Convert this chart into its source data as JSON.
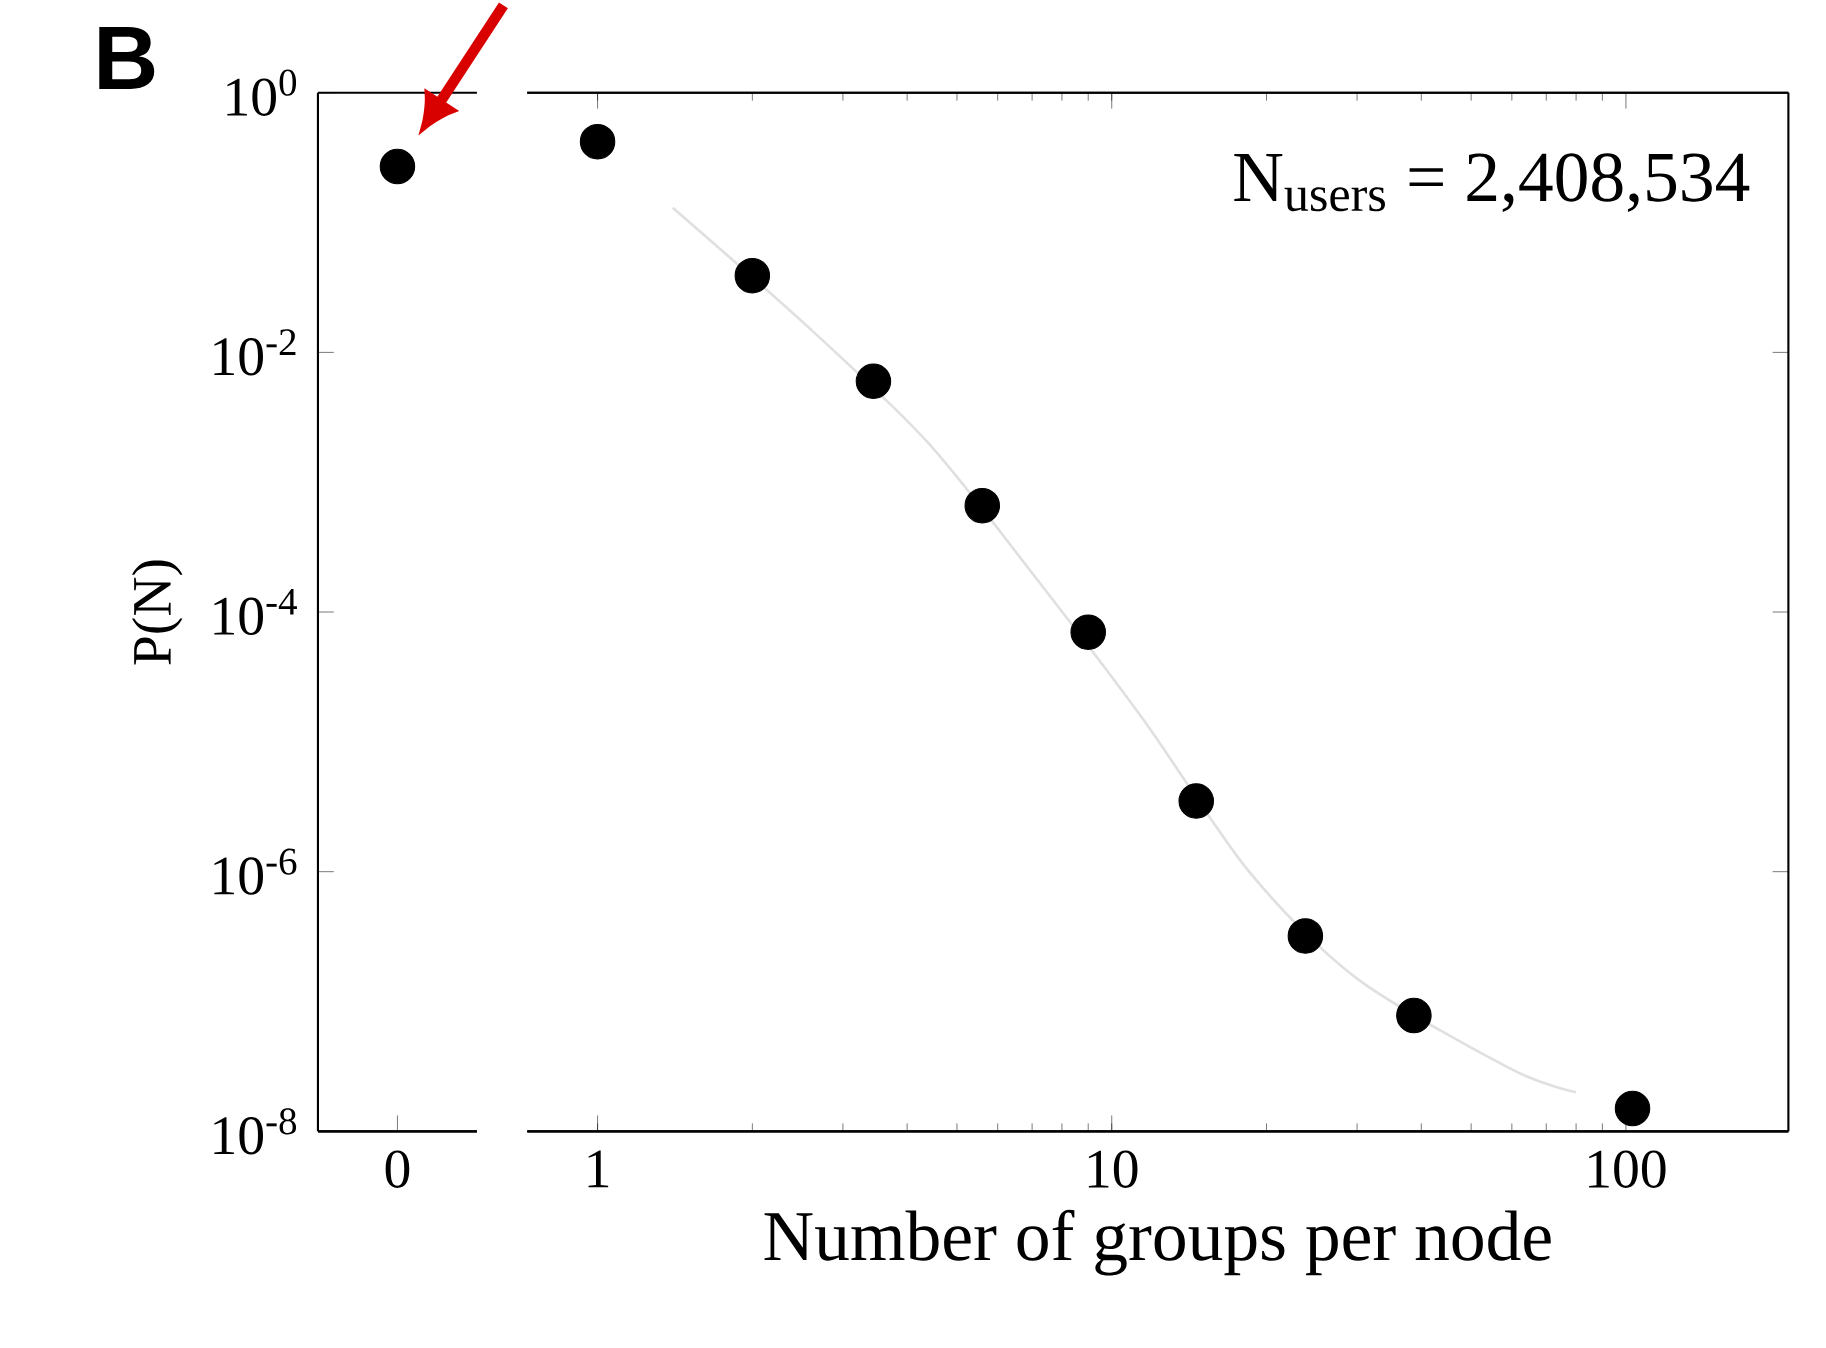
{
  "chart_data": [
    {
      "type": "scatter",
      "title": "B",
      "ylabel": "P(N)",
      "categories": [
        "0"
      ],
      "values": [
        0.27
      ],
      "color": "#000000",
      "log": "y",
      "ylim": [
        1e-08,
        1
      ],
      "yticks": [
        {
          "value": 1,
          "label": "10$^{0}$"
        },
        {
          "value": 0.01,
          "label": "10$^{-2}$"
        },
        {
          "value": 0.0001,
          "label": "10$^{-4}$"
        },
        {
          "value": 1e-06,
          "label": "10$^{-6}$"
        },
        {
          "value": 1e-08,
          "label": "10$^{-8}$"
        }
      ]
    },
    {
      "type": "scatter",
      "xlabel": "Number of groups per node",
      "annotations": [
        "N$_{users}$ = 2,408,534"
      ],
      "log": "xy",
      "xlim": [
        0.73,
        207
      ],
      "ylim": [
        1e-08,
        1
      ],
      "xticks": [
        1,
        10,
        100
      ],
      "yticks": [
        1,
        0.01,
        0.0001,
        1e-06,
        1e-08
      ],
      "tick_labels": "x",
      "series": [
        {
          "type": "line",
          "color": "#e0e0e0",
          "x": [
            1.4,
            2.6,
            4.4,
            7,
            11.5,
            18.5,
            30,
            60,
            80
          ],
          "values": [
            0.13,
            0.015,
            0.002,
            0.0002,
            1.5e-05,
            1e-06,
            1.5e-07,
            3e-08,
            2e-08
          ]
        },
        {
          "type": "scatter",
          "color": "#000000",
          "x": [
            1,
            2,
            3.44,
            5.6,
            9,
            14.6,
            23.8,
            38.7,
            103
          ],
          "values": [
            0.42,
            0.039,
            0.006,
            0.00066,
            7e-05,
            3.5e-06,
            3.2e-07,
            7.8e-08,
            1.5e-08
          ]
        }
      ]
    }
  ]
}
